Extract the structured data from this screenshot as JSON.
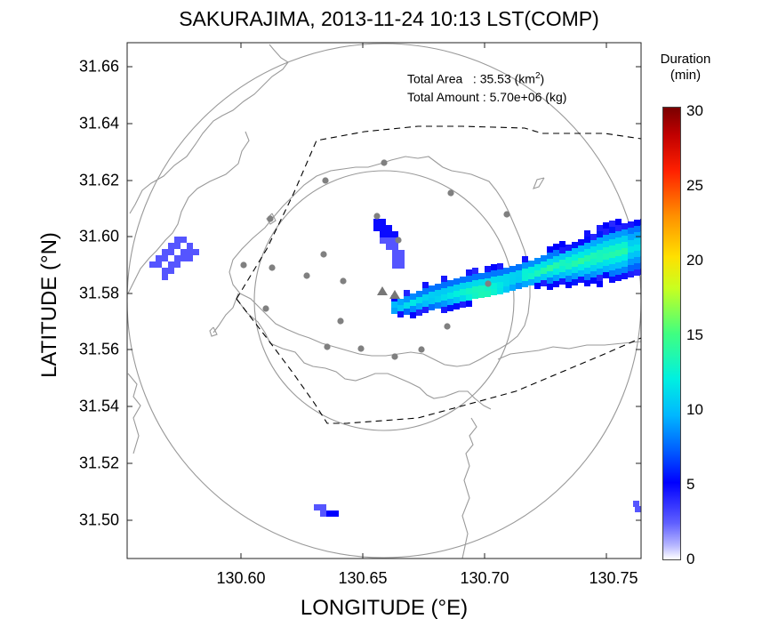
{
  "title": "SAKURAJIMA, 2013-11-24 10:13 LST(COMP)",
  "axes": {
    "xlabel": "LONGITUDE (°E)",
    "ylabel": "LATITUDE (°N)",
    "xticks": [
      "130.60",
      "130.65",
      "130.70",
      "130.75"
    ],
    "yticks": [
      "31.66",
      "31.64",
      "31.62",
      "31.60",
      "31.58",
      "31.56",
      "31.54",
      "31.52",
      "31.50"
    ],
    "xlim": [
      130.553,
      130.763
    ],
    "ylim": [
      31.487,
      31.667
    ]
  },
  "info": {
    "area_label": "Total Area   : 35.53 (km",
    "area_sup": "2",
    "area_end": ")",
    "amount_label": "Total Amount : 5.70e+06 (kg)"
  },
  "colorbar": {
    "title_line1": "Duration",
    "title_line2": "(min)",
    "ticks": [
      "30",
      "25",
      "20",
      "15",
      "10",
      "5",
      "0"
    ],
    "range": [
      0,
      30
    ]
  },
  "colors": {
    "coast": "#9a9a9a",
    "range_circle": "#999999",
    "station": "#808080",
    "crater": "#777777",
    "boundary": "#000000"
  }
}
